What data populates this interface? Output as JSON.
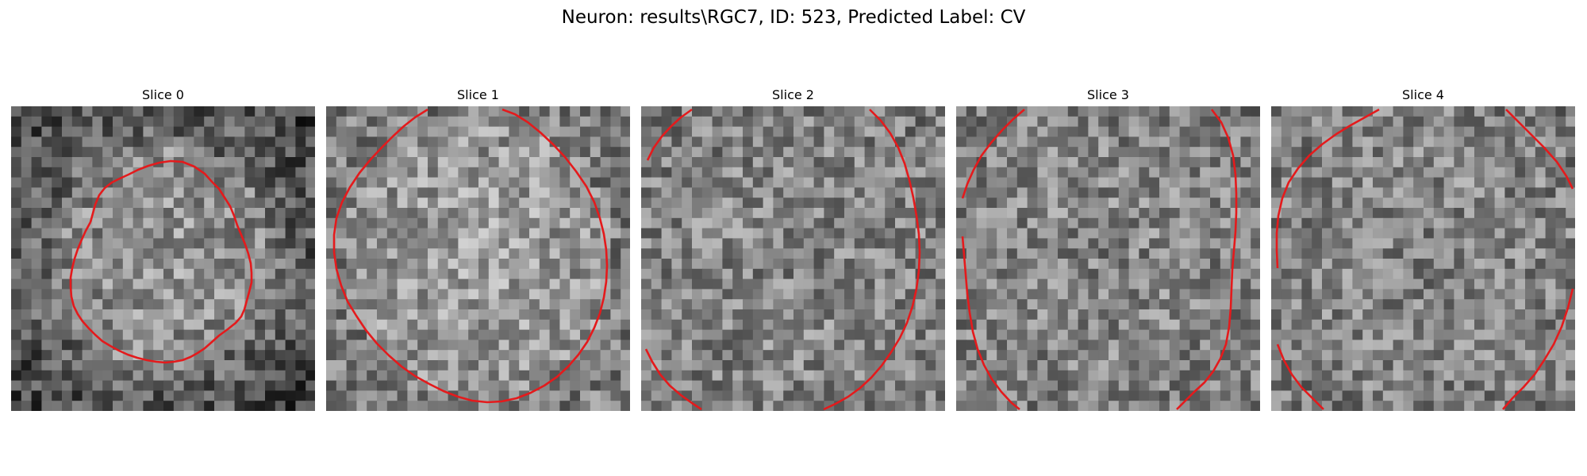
{
  "figure": {
    "title": "Neuron: results\\RGC7, ID: 523, Predicted Label: CV",
    "contour_color": "#e41a1c"
  },
  "panels": [
    {
      "title": "Slice 0"
    },
    {
      "title": "Slice 1"
    },
    {
      "title": "Slice 2"
    },
    {
      "title": "Slice 3"
    },
    {
      "title": "Slice 4"
    }
  ]
}
